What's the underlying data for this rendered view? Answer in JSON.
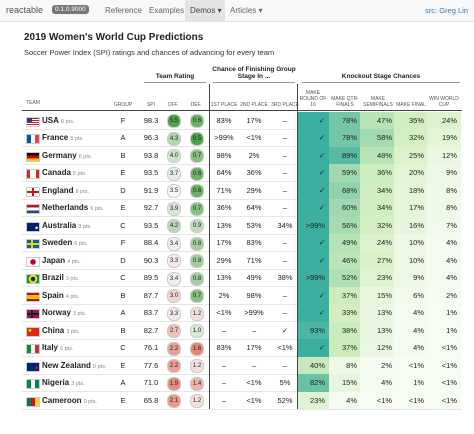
{
  "nav": {
    "brand": "reactable",
    "version": "0.1.0.9000",
    "links": [
      "Reference",
      "Examples",
      "Demos ▾",
      "Articles ▾"
    ],
    "source": "src: Greg Lin"
  },
  "title": "2019 Women's World Cup Predictions",
  "subtitle": "Soccer Power Index (SPI) ratings and chances of advancing for every team",
  "table": {
    "group_headers": [
      "Team Rating",
      "Chance of Finishing Group Stage In ...",
      "Knockout Stage Chances"
    ],
    "columns": [
      "TEAM",
      "GROUP",
      "SPI",
      "OFF.",
      "DEF.",
      "1ST PLACE",
      "2ND PLACE",
      "3RD PLACE",
      "MAKE ROUND OF 16",
      "MAKE QTR-FINALS",
      "MAKE SEMIFINALS",
      "MAKE FINAL",
      "WIN WORLD CUP"
    ],
    "rows": [
      {
        "team": "USA",
        "points": "6 pts.",
        "group": "F",
        "spi": "98.3",
        "off": "5.5",
        "def": "0.6",
        "cells": [
          "83%",
          "17%",
          "–",
          "✓",
          "78%",
          "47%",
          "35%",
          "24%"
        ]
      },
      {
        "team": "France",
        "points": "6 pts.",
        "group": "A",
        "spi": "96.3",
        "off": "4.3",
        "def": "0.5",
        "cells": [
          ">99%",
          "<1%",
          "–",
          "✓",
          "78%",
          "58%",
          "32%",
          "19%"
        ]
      },
      {
        "team": "Germany",
        "points": "6 pts.",
        "group": "B",
        "spi": "93.8",
        "off": "4.0",
        "def": "0.7",
        "cells": [
          "98%",
          "2%",
          "–",
          "✓",
          "89%",
          "48%",
          "25%",
          "12%"
        ]
      },
      {
        "team": "Canada",
        "points": "6 pts.",
        "group": "E",
        "spi": "93.5",
        "off": "3.7",
        "def": "0.6",
        "cells": [
          "64%",
          "36%",
          "–",
          "✓",
          "59%",
          "36%",
          "20%",
          "9%"
        ]
      },
      {
        "team": "England",
        "points": "6 pts.",
        "group": "D",
        "spi": "91.9",
        "off": "3.5",
        "def": "0.6",
        "cells": [
          "71%",
          "29%",
          "–",
          "✓",
          "68%",
          "34%",
          "18%",
          "8%"
        ]
      },
      {
        "team": "Netherlands",
        "points": "6 pts.",
        "group": "E",
        "spi": "92.7",
        "off": "3.9",
        "def": "0.7",
        "cells": [
          "36%",
          "64%",
          "–",
          "✓",
          "60%",
          "34%",
          "17%",
          "8%"
        ]
      },
      {
        "team": "Australia",
        "points": "3 pts.",
        "group": "C",
        "spi": "93.5",
        "off": "4.2",
        "def": "0.9",
        "cells": [
          "13%",
          "53%",
          "34%",
          ">99%",
          "56%",
          "32%",
          "16%",
          "7%"
        ]
      },
      {
        "team": "Sweden",
        "points": "6 pts.",
        "group": "F",
        "spi": "88.4",
        "off": "3.4",
        "def": "0.8",
        "cells": [
          "17%",
          "83%",
          "–",
          "✓",
          "49%",
          "24%",
          "10%",
          "4%"
        ]
      },
      {
        "team": "Japan",
        "points": "4 pts.",
        "group": "D",
        "spi": "90.3",
        "off": "3.3",
        "def": "0.8",
        "cells": [
          "29%",
          "71%",
          "–",
          "✓",
          "46%",
          "27%",
          "10%",
          "4%"
        ]
      },
      {
        "team": "Brazil",
        "points": "3 pts.",
        "group": "C",
        "spi": "89.5",
        "off": "3.4",
        "def": "0.8",
        "cells": [
          "13%",
          "49%",
          "38%",
          ">99%",
          "52%",
          "23%",
          "9%",
          "4%"
        ]
      },
      {
        "team": "Spain",
        "points": "4 pts.",
        "group": "B",
        "spi": "87.7",
        "off": "3.0",
        "def": "0.7",
        "cells": [
          "2%",
          "98%",
          "–",
          "✓",
          "37%",
          "15%",
          "6%",
          "2%"
        ]
      },
      {
        "team": "Norway",
        "points": "3 pts.",
        "group": "A",
        "spi": "83.7",
        "off": "3.3",
        "def": "1.2",
        "cells": [
          "<1%",
          ">99%",
          "–",
          "✓",
          "33%",
          "13%",
          "4%",
          "1%"
        ]
      },
      {
        "team": "China",
        "points": "3 pts.",
        "group": "B",
        "spi": "82.7",
        "off": "2.7",
        "def": "1.0",
        "cells": [
          "–",
          "–",
          "✓",
          "93%",
          "38%",
          "13%",
          "4%",
          "1%"
        ]
      },
      {
        "team": "Italy",
        "points": "6 pts.",
        "group": "C",
        "spi": "76.1",
        "off": "2.2",
        "def": "1.6",
        "cells": [
          "83%",
          "17%",
          "<1%",
          "✓",
          "37%",
          "12%",
          "4%",
          "<1%"
        ]
      },
      {
        "team": "New Zealand",
        "points": "0 pts.",
        "group": "E",
        "spi": "77.6",
        "off": "2.2",
        "def": "1.2",
        "cells": [
          "–",
          "–",
          "–",
          "40%",
          "8%",
          "2%",
          "<1%",
          "<1%"
        ]
      },
      {
        "team": "Nigeria",
        "points": "3 pts.",
        "group": "A",
        "spi": "71.0",
        "off": "1.9",
        "def": "1.4",
        "cells": [
          "–",
          "<1%",
          "5%",
          "82%",
          "15%",
          "4%",
          "1%",
          "<1%"
        ]
      },
      {
        "team": "Cameroon",
        "points": "0 pts.",
        "group": "E",
        "spi": "65.8",
        "off": "2.1",
        "def": "1.2",
        "cells": [
          "–",
          "<1%",
          "52%",
          "23%",
          "4%",
          "<1%",
          "<1%",
          "<1%"
        ]
      }
    ]
  }
}
